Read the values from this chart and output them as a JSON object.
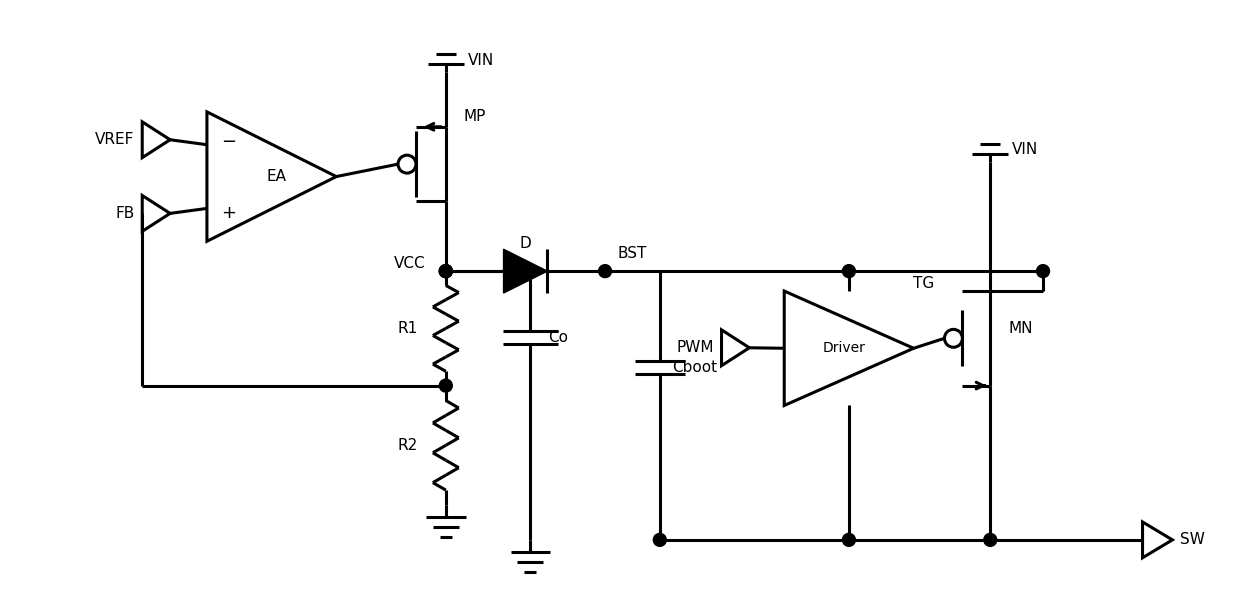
{
  "bg_color": "#ffffff",
  "line_color": "#000000",
  "lw": 2.2,
  "fig_w": 12.39,
  "fig_h": 5.96,
  "xlim": [
    0,
    12.39
  ],
  "ylim": [
    0,
    5.96
  ]
}
